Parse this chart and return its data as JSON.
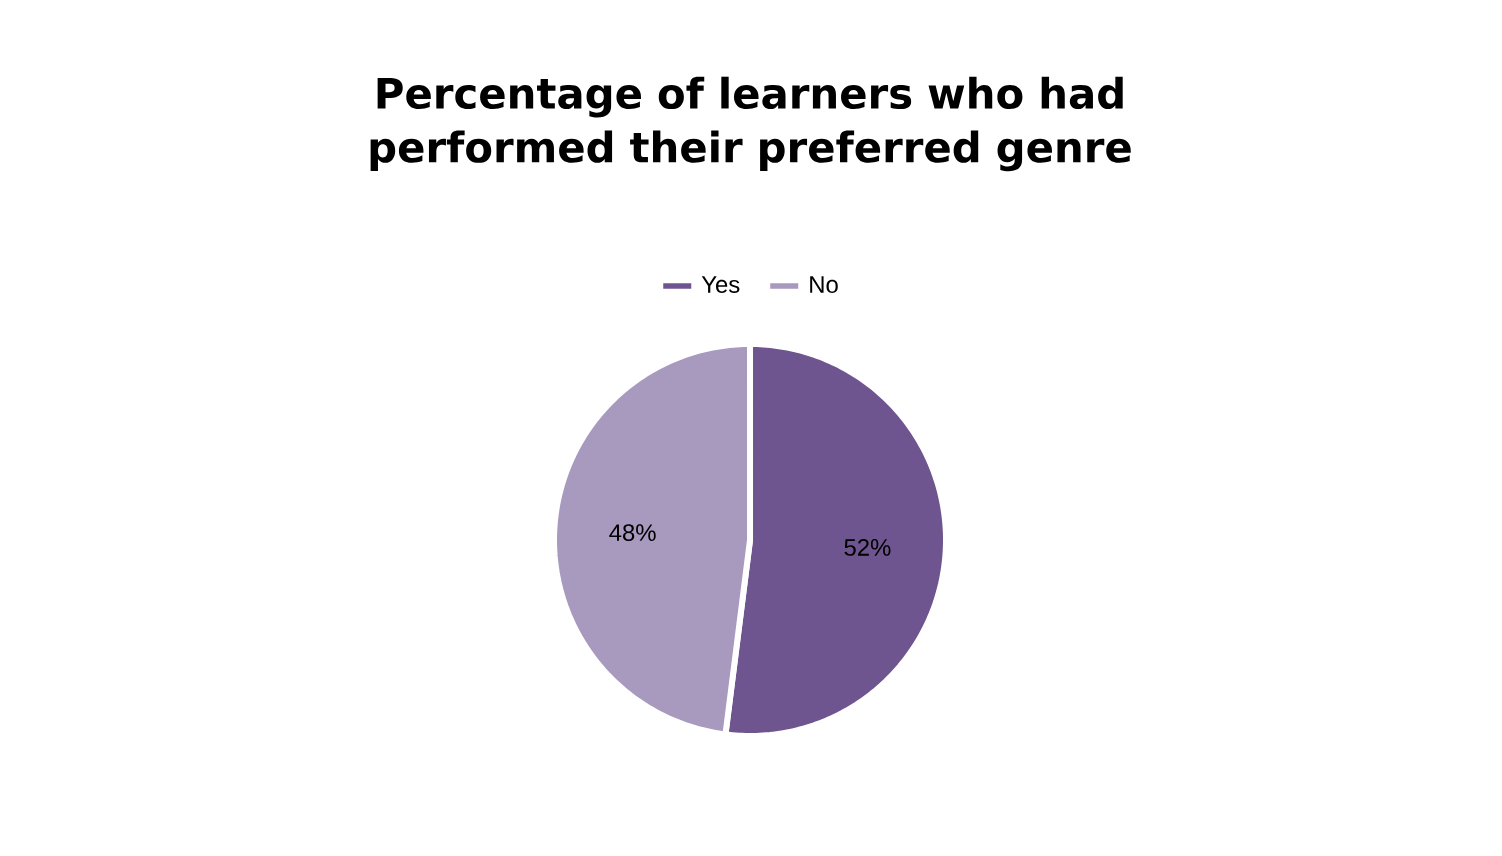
{
  "chart_data": {
    "type": "pie",
    "title": "Percentage of learners who had performed their preferred genre",
    "categories": [
      "Yes",
      "No"
    ],
    "values": [
      52,
      48
    ],
    "colors": [
      "#6f558f",
      "#a899bf"
    ],
    "value_labels": [
      "52%",
      "48%"
    ],
    "legend": "top"
  }
}
